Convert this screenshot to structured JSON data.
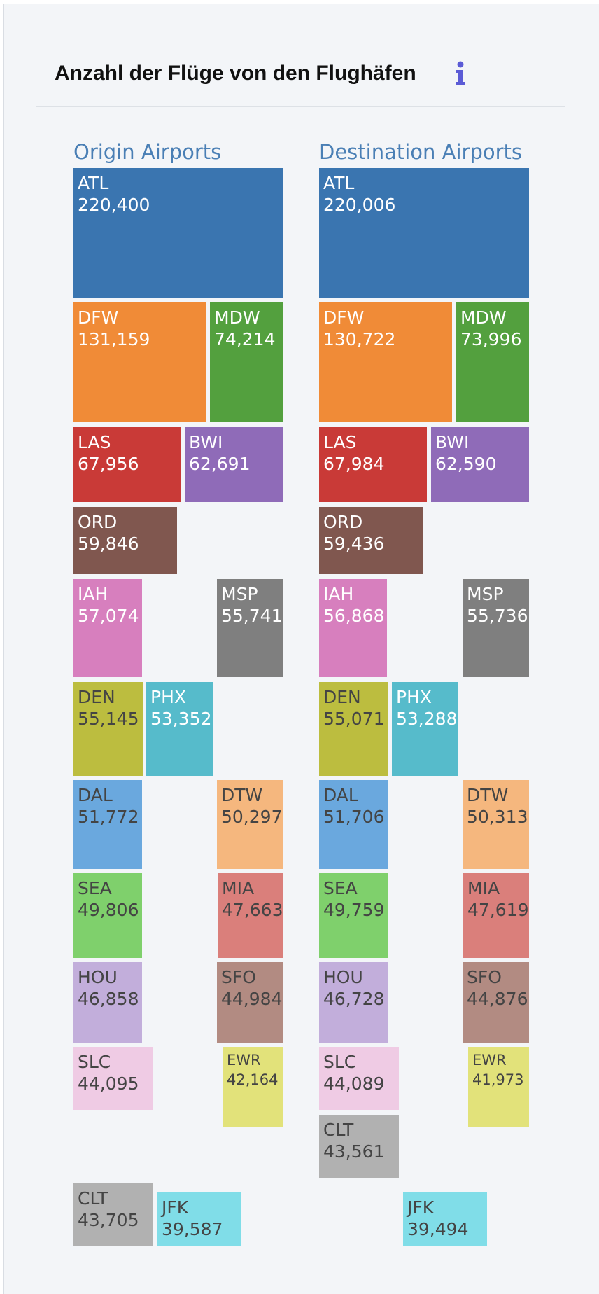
{
  "header": {
    "title": "Anzahl der Flüge von den Flughäfen",
    "info_icon": "info-icon"
  },
  "colors": {
    "ATL": "#3a75b0",
    "DFW": "#f08b37",
    "MDW": "#53a03e",
    "LAS": "#c93a37",
    "BWI": "#8f6bb8",
    "ORD": "#80574f",
    "IAH": "#d77fbe",
    "MSP": "#7f7f7f",
    "DEN": "#bcbd3f",
    "PHX": "#56bbcb",
    "DAL": "#6aa8de",
    "DTW": "#f5b77e",
    "SEA": "#7fd06c",
    "MIA": "#da7f7b",
    "HOU": "#c2aedb",
    "SFO": "#b28b82",
    "SLC": "#efcbe4",
    "EWR": "#e2e27a",
    "CLT": "#b1b1b1",
    "JFK": "#80dde8"
  },
  "chart_data": [
    {
      "type": "treemap",
      "title": "Origin Airports",
      "categories": [
        "ATL",
        "DFW",
        "MDW",
        "LAS",
        "BWI",
        "ORD",
        "IAH",
        "MSP",
        "DEN",
        "PHX",
        "DAL",
        "DTW",
        "SEA",
        "MIA",
        "HOU",
        "SFO",
        "SLC",
        "EWR",
        "CLT",
        "JFK"
      ],
      "labels": [
        "220,400",
        "131,159",
        "74,214",
        "67,956",
        "62,691",
        "59,846",
        "57,074",
        "55,741",
        "55,145",
        "53,352",
        "51,772",
        "50,297",
        "49,806",
        "47,663",
        "46,858",
        "44,984",
        "44,095",
        "42,164",
        "43,705",
        "39,587"
      ],
      "values": [
        220400,
        131159,
        74214,
        67956,
        62691,
        59846,
        57074,
        55741,
        55145,
        53352,
        51772,
        50297,
        49806,
        47663,
        46858,
        44984,
        44095,
        42164,
        43705,
        39587
      ]
    },
    {
      "type": "treemap",
      "title": "Destination Airports",
      "categories": [
        "ATL",
        "DFW",
        "MDW",
        "LAS",
        "BWI",
        "ORD",
        "IAH",
        "MSP",
        "DEN",
        "PHX",
        "DAL",
        "DTW",
        "SEA",
        "MIA",
        "HOU",
        "SFO",
        "SLC",
        "EWR",
        "CLT",
        "JFK"
      ],
      "labels": [
        "220,006",
        "130,722",
        "73,996",
        "67,984",
        "62,590",
        "59,436",
        "56,868",
        "55,736",
        "55,071",
        "53,288",
        "51,706",
        "50,313",
        "49,759",
        "47,619",
        "46,728",
        "44,876",
        "44,089",
        "41,973",
        "43,561",
        "39,494"
      ],
      "values": [
        220006,
        130722,
        73996,
        67984,
        62590,
        59436,
        56868,
        55736,
        55071,
        53288,
        51706,
        50313,
        49759,
        47619,
        46728,
        44876,
        44089,
        41973,
        43561,
        39494
      ]
    }
  ]
}
